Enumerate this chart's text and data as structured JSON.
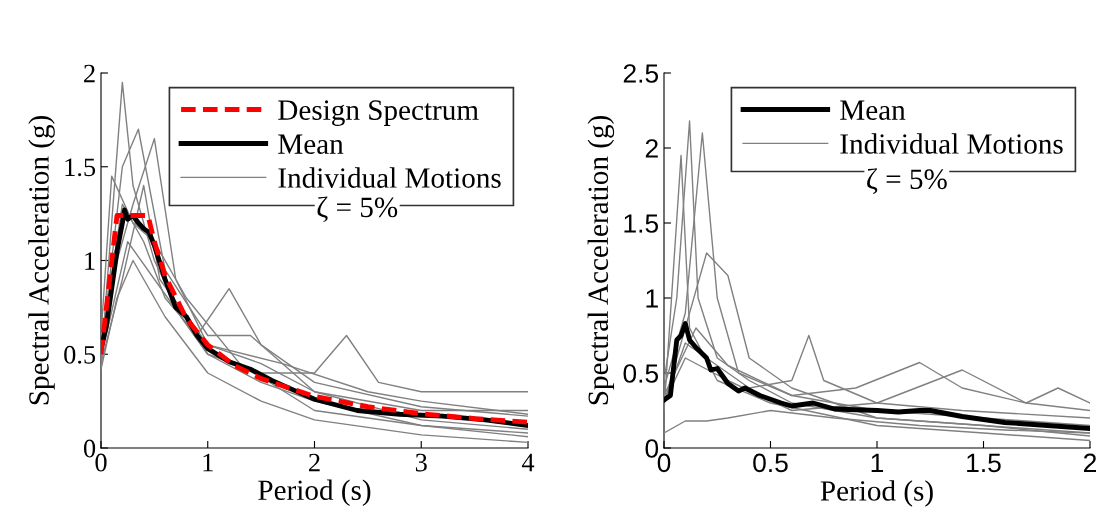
{
  "chart_data": [
    {
      "type": "line",
      "xlabel": "Period (s)",
      "ylabel": "Spectral Acceleration (g)",
      "xlim": [
        0,
        4
      ],
      "ylim": [
        0,
        2
      ],
      "xticks": [
        0,
        1,
        2,
        3,
        4
      ],
      "yticks": [
        0,
        0.5,
        1,
        1.5,
        2
      ],
      "legend": "top right",
      "grid": false,
      "annotations": [
        "ζ = 5%"
      ],
      "series": [
        {
          "name": "Design Spectrum",
          "color": "#ff0000",
          "line_style": "dashed",
          "x": [
            0,
            0.15,
            0.44,
            0.5,
            0.6,
            0.8,
            1,
            1.25,
            1.5,
            2,
            2.5,
            3,
            3.5,
            4
          ],
          "values": [
            0.5,
            1.24,
            1.24,
            1.1,
            0.92,
            0.69,
            0.55,
            0.44,
            0.37,
            0.275,
            0.22,
            0.183,
            0.157,
            0.138
          ]
        },
        {
          "name": "Mean",
          "color": "#000000",
          "line_style": "solid",
          "x": [
            0,
            0.05,
            0.1,
            0.15,
            0.2,
            0.22,
            0.25,
            0.3,
            0.35,
            0.4,
            0.45,
            0.5,
            0.6,
            0.7,
            0.8,
            0.9,
            1.0,
            1.2,
            1.4,
            1.6,
            1.8,
            2.0,
            2.4,
            2.8,
            3.2,
            3.6,
            4.0
          ],
          "values": [
            0.53,
            0.65,
            0.85,
            1.05,
            1.2,
            1.27,
            1.22,
            1.24,
            1.2,
            1.17,
            1.15,
            1.08,
            0.9,
            0.75,
            0.7,
            0.6,
            0.53,
            0.46,
            0.42,
            0.36,
            0.31,
            0.26,
            0.2,
            0.18,
            0.17,
            0.15,
            0.12
          ]
        },
        {
          "name": "Individual Motions",
          "color": "#808080",
          "line_style": "solid",
          "x": [
            0,
            0.1,
            0.2,
            0.3,
            0.5,
            0.75,
            1,
            1.5,
            2,
            3,
            4
          ],
          "values": [
            0.45,
            1.2,
            1.95,
            1.4,
            1.0,
            0.7,
            0.5,
            0.35,
            0.25,
            0.12,
            0.06
          ]
        },
        {
          "color": "#808080",
          "line_style": "solid",
          "x": [
            0,
            0.15,
            0.3,
            0.5,
            0.7,
            1,
            1.5,
            2,
            3,
            4
          ],
          "values": [
            0.5,
            1.0,
            1.3,
            1.65,
            0.9,
            0.55,
            0.45,
            0.3,
            0.15,
            0.1
          ]
        },
        {
          "color": "#808080",
          "line_style": "solid",
          "x": [
            0,
            0.2,
            0.4,
            0.6,
            0.9,
            1.2,
            1.5,
            2,
            3,
            4
          ],
          "values": [
            0.55,
            1.3,
            1.1,
            0.8,
            0.6,
            0.85,
            0.55,
            0.35,
            0.22,
            0.17
          ]
        },
        {
          "color": "#808080",
          "line_style": "solid",
          "x": [
            0,
            0.25,
            0.5,
            1,
            1.5,
            2,
            2.3,
            2.6,
            3,
            4
          ],
          "values": [
            0.48,
            1.1,
            0.9,
            0.5,
            0.4,
            0.4,
            0.6,
            0.35,
            0.3,
            0.3
          ]
        },
        {
          "color": "#808080",
          "line_style": "solid",
          "x": [
            0,
            0.15,
            0.3,
            0.6,
            1,
            1.5,
            2,
            3,
            4
          ],
          "values": [
            0.42,
            0.8,
            1.0,
            0.7,
            0.4,
            0.25,
            0.15,
            0.07,
            0.03
          ]
        },
        {
          "color": "#808080",
          "line_style": "solid",
          "x": [
            0,
            0.2,
            0.35,
            0.6,
            1,
            1.4,
            2,
            3,
            4
          ],
          "values": [
            0.5,
            1.5,
            1.7,
            0.95,
            0.6,
            0.6,
            0.3,
            0.2,
            0.2
          ]
        },
        {
          "color": "#808080",
          "line_style": "solid",
          "x": [
            0,
            0.1,
            0.3,
            0.5,
            0.8,
            1.3,
            2,
            3,
            4
          ],
          "values": [
            0.6,
            1.45,
            1.2,
            1.1,
            0.8,
            0.45,
            0.2,
            0.12,
            0.08
          ]
        },
        {
          "color": "#808080",
          "line_style": "solid",
          "x": [
            0,
            0.2,
            0.4,
            0.55,
            1,
            1.7,
            2.5,
            3,
            4
          ],
          "values": [
            0.45,
            0.9,
            1.4,
            0.9,
            0.55,
            0.45,
            0.3,
            0.25,
            0.18
          ]
        }
      ]
    },
    {
      "type": "line",
      "xlabel": "Period (s)",
      "ylabel": "Spectral Acceleration (g)",
      "xlim": [
        0,
        2
      ],
      "ylim": [
        0,
        2.5
      ],
      "xticks": [
        0,
        0.5,
        1,
        1.5,
        2
      ],
      "yticks": [
        0,
        0.5,
        1,
        1.5,
        2,
        2.5
      ],
      "legend": "top right",
      "grid": false,
      "annotations": [
        "ζ = 5%"
      ],
      "series": [
        {
          "name": "Mean",
          "color": "#000000",
          "line_style": "solid",
          "x": [
            0,
            0.03,
            0.06,
            0.08,
            0.1,
            0.12,
            0.15,
            0.2,
            0.22,
            0.25,
            0.3,
            0.35,
            0.38,
            0.45,
            0.55,
            0.6,
            0.7,
            0.8,
            1.0,
            1.1,
            1.2,
            1.25,
            1.4,
            1.6,
            1.8,
            2.0
          ],
          "values": [
            0.32,
            0.35,
            0.72,
            0.75,
            0.83,
            0.72,
            0.67,
            0.6,
            0.52,
            0.53,
            0.43,
            0.38,
            0.4,
            0.35,
            0.3,
            0.28,
            0.3,
            0.26,
            0.25,
            0.24,
            0.25,
            0.25,
            0.21,
            0.17,
            0.15,
            0.13
          ]
        },
        {
          "name": "Individual Motions",
          "color": "#808080",
          "line_style": "solid",
          "x": [
            0,
            0.06,
            0.12,
            0.16,
            0.25,
            0.4,
            0.6,
            1,
            1.5,
            2
          ],
          "values": [
            0.45,
            1.0,
            2.18,
            1.0,
            0.6,
            0.45,
            0.3,
            0.2,
            0.15,
            0.1
          ]
        },
        {
          "color": "#808080",
          "line_style": "solid",
          "x": [
            0,
            0.1,
            0.18,
            0.25,
            0.35,
            0.6,
            1,
            1.5,
            2
          ],
          "values": [
            0.4,
            0.9,
            2.1,
            1.0,
            0.5,
            0.35,
            0.25,
            0.2,
            0.15
          ]
        },
        {
          "color": "#808080",
          "line_style": "solid",
          "x": [
            0,
            0.1,
            0.2,
            0.3,
            0.5,
            0.8,
            1.2,
            1.6,
            2
          ],
          "values": [
            0.1,
            0.18,
            0.18,
            0.2,
            0.25,
            0.2,
            0.15,
            0.12,
            0.1
          ]
        },
        {
          "color": "#808080",
          "line_style": "solid",
          "x": [
            0,
            0.1,
            0.2,
            0.4,
            0.6,
            0.68,
            0.75,
            1,
            1.4,
            2
          ],
          "values": [
            0.3,
            0.7,
            0.6,
            0.4,
            0.45,
            0.75,
            0.45,
            0.3,
            0.25,
            0.2
          ]
        },
        {
          "color": "#808080",
          "line_style": "solid",
          "x": [
            0,
            0.15,
            0.3,
            0.6,
            0.9,
            1.2,
            1.4,
            1.7,
            2
          ],
          "values": [
            0.35,
            0.8,
            0.55,
            0.35,
            0.4,
            0.57,
            0.4,
            0.3,
            0.25
          ]
        },
        {
          "color": "#808080",
          "line_style": "solid",
          "x": [
            0,
            0.1,
            0.3,
            0.6,
            1,
            1.4,
            1.7,
            1.85,
            2
          ],
          "values": [
            0.3,
            0.6,
            0.45,
            0.25,
            0.3,
            0.52,
            0.3,
            0.4,
            0.3
          ]
        },
        {
          "color": "#808080",
          "line_style": "solid",
          "x": [
            0,
            0.08,
            0.12,
            0.25,
            0.5,
            1,
            1.5,
            2
          ],
          "values": [
            0.25,
            1.95,
            0.8,
            0.45,
            0.3,
            0.15,
            0.1,
            0.05
          ]
        },
        {
          "color": "#808080",
          "line_style": "solid",
          "x": [
            0,
            0.2,
            0.3,
            0.4,
            0.6,
            1,
            1.5,
            2
          ],
          "values": [
            0.3,
            1.3,
            1.15,
            0.6,
            0.4,
            0.2,
            0.15,
            0.08
          ]
        }
      ]
    }
  ]
}
